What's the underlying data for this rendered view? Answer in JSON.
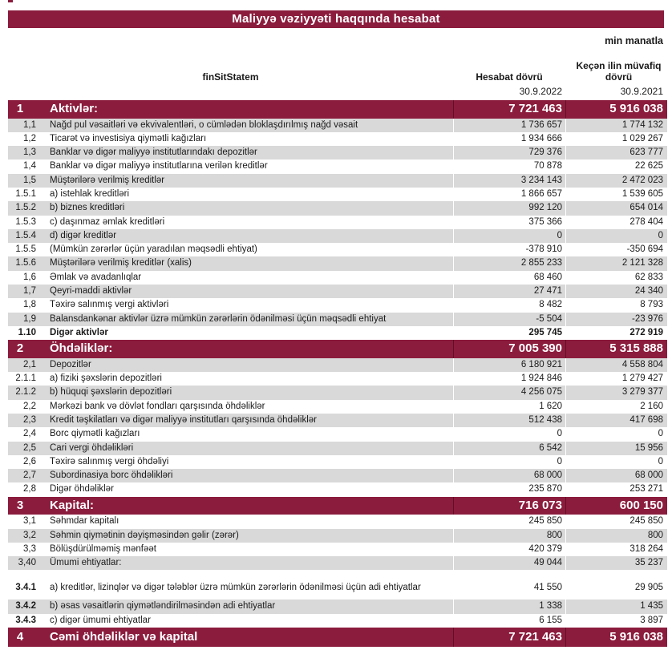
{
  "report": {
    "title": "Maliyyə vəziyyəti haqqında hesabat",
    "unit_note": "min manatla",
    "header": {
      "name_column": "finSitStatem",
      "current_period": "Hesabat dövrü",
      "previous_period": "Keçən ilin müvafiq dövrü",
      "current_date": "30.9.2022",
      "previous_date": "30.9.2021"
    },
    "colors": {
      "maroon": "#8B1C3D",
      "row_band": "#D9D9D9"
    },
    "sections": [
      {
        "num": "1",
        "label": "Aktivlər:",
        "current": "7 721 463",
        "previous": "5 916 038",
        "rows": [
          {
            "num": "1,1",
            "label": "Nağd pul vəsaitləri və  ekvivalentləri, o cümlədən bloklaşdırılmış nağd vəsait",
            "current": "1 736 657",
            "previous": "1 774 132",
            "shaded": true
          },
          {
            "num": "1,2",
            "label": "Ticarət və investisiya qiymətli kağızları",
            "current": "1 934 666",
            "previous": "1 029 267",
            "shaded": false
          },
          {
            "num": "1,3",
            "label": "Banklar və digər maliyyə institutlarındakı depozitlər",
            "current": "729 376",
            "previous": "623 777",
            "shaded": true
          },
          {
            "num": "1,4",
            "label": "Banklar və digər maliyyə institutlarına verilən kreditlər",
            "current": "70 878",
            "previous": "22 625",
            "shaded": false
          },
          {
            "num": "1,5",
            "label": "Müştərilərə verilmiş kreditlər",
            "current": "3 234 143",
            "previous": "2 472 023",
            "shaded": true
          },
          {
            "num": "1.5.1",
            "label": "a) istehlak kreditləri",
            "current": "1 866 657",
            "previous": "1 539 605",
            "shaded": false
          },
          {
            "num": "1.5.2",
            "label": "b) biznes kreditləri",
            "current": "992 120",
            "previous": "654 014",
            "shaded": true
          },
          {
            "num": "1.5.3",
            "label": "c) daşınmaz əmlak kreditləri",
            "current": "375 366",
            "previous": "278 404",
            "shaded": false
          },
          {
            "num": "1.5.4",
            "label": "d) digər kreditlər",
            "current": "0",
            "previous": "0",
            "shaded": true
          },
          {
            "num": "1.5.5",
            "label": "(Mümkün zərərlər üçün yaradılan məqsədli ehtiyat)",
            "current": "-378 910",
            "previous": "-350 694",
            "shaded": false
          },
          {
            "num": "1.5.6",
            "label": "Müştərilərə verilmiş kreditlər (xalis)",
            "current": "2 855 233",
            "previous": "2 121 328",
            "shaded": true
          },
          {
            "num": "1,6",
            "label": "Əmlak və avadanlıqlar",
            "current": "68 460",
            "previous": "62 833",
            "shaded": false
          },
          {
            "num": "1,7",
            "label": "Qeyri-maddi aktivlər",
            "current": "27 471",
            "previous": "24 340",
            "shaded": true
          },
          {
            "num": "1,8",
            "label": "Təxirə salınmış vergi aktivləri",
            "current": "8 482",
            "previous": "8 793",
            "shaded": false
          },
          {
            "num": "1,9",
            "label": "Balansdankənar aktivlər üzrə mümkün zərərlərin ödənilməsi üçün məqsədli ehtiyat",
            "current": "-5 504",
            "previous": "-23 976",
            "shaded": true
          },
          {
            "num": "1.10",
            "label": "Digər aktivlər",
            "current": "295 745",
            "previous": "272 919",
            "shaded": false,
            "bold": true
          }
        ]
      },
      {
        "num": "2",
        "label": "Öhdəliklər:",
        "current": "7 005 390",
        "previous": "5 315 888",
        "rows": [
          {
            "num": "2,1",
            "label": "Depozitlər",
            "current": "6 180 921",
            "previous": "4 558 804",
            "shaded": true
          },
          {
            "num": "2.1.1",
            "label": "a) fiziki şəxslərin depozitləri",
            "current": "1 924 846",
            "previous": "1 279 427",
            "shaded": false
          },
          {
            "num": "2.1.2",
            "label": "b) hüquqi şəxslərin depozitləri",
            "current": "4 256 075",
            "previous": "3 279 377",
            "shaded": true
          },
          {
            "num": "2,2",
            "label": "Mərkəzi bank və dövlət fondları qarşısında öhdəliklər",
            "current": "1 620",
            "previous": "2 160",
            "shaded": false
          },
          {
            "num": "2,3",
            "label": "Kredit təşkilatları və digər maliyyə institutları qarşısında öhdəliklər",
            "current": "512 438",
            "previous": "417 698",
            "shaded": true
          },
          {
            "num": "2,4",
            "label": "Borc qiymətli kağızları",
            "current": "0",
            "previous": "0",
            "shaded": false
          },
          {
            "num": "2,5",
            "label": "Cari vergi öhdəlikləri",
            "current": "6 542",
            "previous": "15 956",
            "shaded": true
          },
          {
            "num": "2,6",
            "label": "Təxirə salınmış vergi öhdəliyi",
            "current": "0",
            "previous": "0",
            "shaded": false
          },
          {
            "num": "2,7",
            "label": "Subordinasiya borc öhdəlikləri",
            "current": "68 000",
            "previous": "68 000",
            "shaded": true
          },
          {
            "num": "2,8",
            "label": "Digər öhdəliklər",
            "current": "235 870",
            "previous": "253 271",
            "shaded": false
          }
        ]
      },
      {
        "num": "3",
        "label": "Kapital:",
        "current": "716 073",
        "previous": "600 150",
        "rows": [
          {
            "num": "3,1",
            "label": "Səhmdar kapitalı",
            "current": "245 850",
            "previous": "245 850",
            "shaded": false
          },
          {
            "num": "3,2",
            "label": "Səhmin qiymətinin dəyişməsindən gəlir (zərər)",
            "current": "800",
            "previous": "800",
            "shaded": true
          },
          {
            "num": "3,3",
            "label": "Bölüşdürülməmiş mənfəət",
            "current": "420 379",
            "previous": "318 264",
            "shaded": false
          },
          {
            "num": "3,40",
            "label": "Ümumi ehtiyatlar:",
            "current": "49 044",
            "previous": "35 237",
            "shaded": true
          },
          {
            "num": "3.4.1",
            "label": "a) kreditlər, lizinqlər və digər tələblər üzrə mümkün zərərlərin ödənilməsi üçün adi ehtiyatlar",
            "current": "41 550",
            "previous": "29 905",
            "shaded": false,
            "bold_num": true,
            "tall": true,
            "gap_before": true
          },
          {
            "num": "3.4.2",
            "label": "b) əsas vəsaitlərin qiymətləndirilməsindən adi ehtiyatlar",
            "current": "1 338",
            "previous": "1 435",
            "shaded": true,
            "bold_num": true
          },
          {
            "num": "3.4.3",
            "label": "c) digər ümumi ehtiyatlar",
            "current": "6 155",
            "previous": "3 897",
            "shaded": false,
            "bold_num": true
          }
        ]
      }
    ],
    "total": {
      "num": "4",
      "label": "Cəmi öhdəliklər və kapital",
      "current": "7 721 463",
      "previous": "5 916 038"
    }
  }
}
